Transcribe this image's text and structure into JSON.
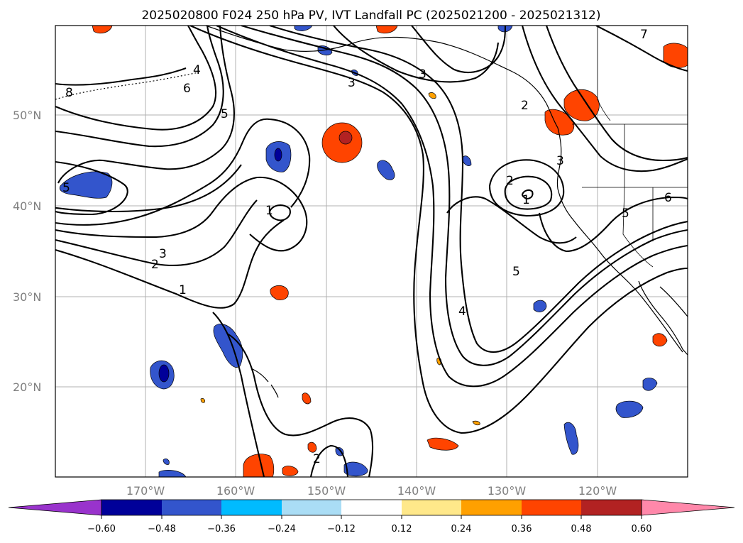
{
  "title": "2025020800 F024 250 hPa PV, IVT Landfall PC (2025021200 - 2025021312)",
  "lat_labels": [
    "50°N",
    "40°N",
    "30°N",
    "20°N"
  ],
  "lon_labels": [
    "170°W",
    "160°W",
    "150°W",
    "140°W",
    "130°W",
    "120°W"
  ],
  "colorbar": {
    "tick_labels": [
      "−0.60",
      "−0.48",
      "−0.36",
      "−0.24",
      "−0.12",
      "0.12",
      "0.24",
      "0.36",
      "0.48",
      "0.60"
    ],
    "colors": [
      "#9933cc",
      "#000099",
      "#3355cc",
      "#00bbff",
      "#aaddf5",
      "#ffffff",
      "#ffe88a",
      "#ffa000",
      "#ff4400",
      "#b22222",
      "#ff88aa"
    ]
  },
  "contour_labels": [
    "8",
    "6",
    "5",
    "4",
    "3",
    "2",
    "1",
    "3",
    "2",
    "1",
    "5",
    "4",
    "3",
    "2",
    "1",
    "4",
    "5",
    "5",
    "3",
    "7",
    "6",
    "5",
    "2"
  ],
  "grid_lines": true
}
